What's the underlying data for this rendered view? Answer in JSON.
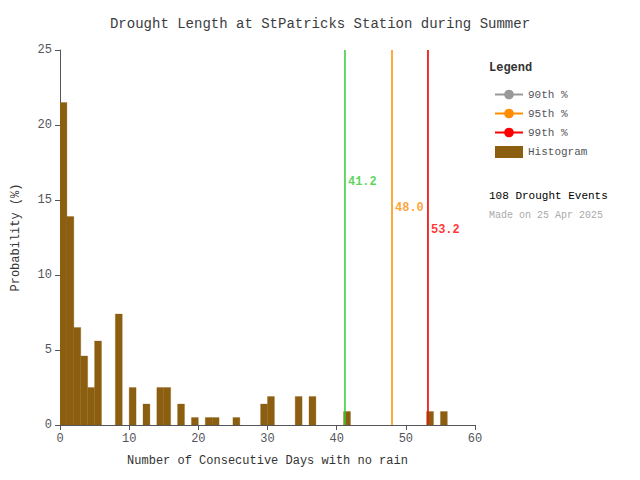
{
  "chart_data": {
    "type": "histogram",
    "title": "Drought Length at StPatricks Station during Summer",
    "xlabel": "Number of Consecutive Days with no rain",
    "ylabel": "Probability (%)",
    "xlim": [
      0,
      60
    ],
    "ylim": [
      0,
      25
    ],
    "xticks": [
      0,
      10,
      20,
      30,
      40,
      50,
      60
    ],
    "yticks": [
      0,
      5,
      10,
      15,
      20,
      25
    ],
    "grid": false,
    "legend": "right",
    "legend_title": "Legend",
    "name": "Histogram",
    "color": "#8B5E10",
    "bins": [
      0,
      1,
      2,
      3,
      4,
      5,
      6,
      7,
      8,
      9,
      10,
      11,
      12,
      13,
      14,
      15,
      16,
      17,
      18,
      19,
      20,
      21,
      22,
      23,
      24,
      25,
      26,
      27,
      28,
      29,
      30,
      31,
      32,
      33,
      34,
      35,
      36,
      37,
      38,
      39,
      40,
      41,
      42,
      43,
      44,
      45,
      46,
      47,
      48,
      49,
      50,
      51,
      52,
      53,
      54,
      55,
      56,
      57,
      58,
      59,
      60
    ],
    "values": [
      21.5,
      13.9,
      6.5,
      4.6,
      2.5,
      5.6,
      0.0,
      0.0,
      7.4,
      0.0,
      2.5,
      0.0,
      1.4,
      0.0,
      2.5,
      2.5,
      0.0,
      1.4,
      0.0,
      0.5,
      0.0,
      0.5,
      0.5,
      0.0,
      0.0,
      0.5,
      0.0,
      0.0,
      0.0,
      1.4,
      1.9,
      0.0,
      0.0,
      0.0,
      1.9,
      0.0,
      1.9,
      0.0,
      0.0,
      0.0,
      0.0,
      0.9,
      0.0,
      0.0,
      0.0,
      0.0,
      0.0,
      0.0,
      0.0,
      0.0,
      0.0,
      0.0,
      0.0,
      0.9,
      0.0,
      0.9,
      0.0,
      0.0,
      0.0,
      0.0
    ],
    "lines": [
      {
        "x": 53.2,
        "color": "#888888"
      },
      {
        "name": "90th %",
        "x": 41.2,
        "color": "#33CC33",
        "legend_color": "#999999",
        "label": "41.2",
        "label_y": 16.2
      },
      {
        "name": "95th %",
        "x": 48.0,
        "color": "#FF8C00",
        "legend_color": "#FF8C00",
        "label": "48.0",
        "label_y": 14.5
      },
      {
        "name": "99th %",
        "x": 53.2,
        "color": "#FF0000",
        "legend_color": "#FF0000",
        "label": "53.2",
        "label_y": 13.0
      }
    ],
    "annotations": [
      {
        "text": "108 Drought Events",
        "color": "#000000"
      },
      {
        "text": "Made on 25 Apr 2025",
        "color": "#aaaaaa"
      }
    ]
  }
}
